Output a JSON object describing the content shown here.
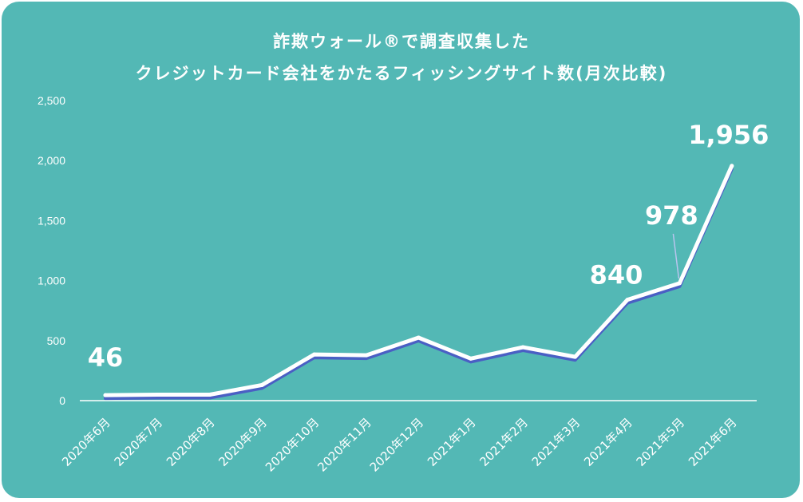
{
  "chart_data": {
    "type": "line",
    "title_line1": "詐欺ウォール®で調査収集した",
    "title_line2": "クレジットカード会社をかたるフィッシングサイト数(月次比較)",
    "categories": [
      "2020年6月",
      "2020年7月",
      "2020年8月",
      "2020年9月",
      "2020年10月",
      "2020年11月",
      "2020年12月",
      "2021年1月",
      "2021年2月",
      "2021年3月",
      "2021年4月",
      "2021年5月",
      "2021年6月"
    ],
    "values": [
      46,
      50,
      50,
      130,
      385,
      378,
      525,
      350,
      445,
      365,
      840,
      978,
      1956
    ],
    "ylim": [
      0,
      2500
    ],
    "yticks": [
      0,
      500,
      1000,
      1500,
      2000,
      2500
    ],
    "ytick_labels": [
      "0",
      "500",
      "1,000",
      "1,500",
      "2,000",
      "2,500"
    ],
    "data_labels": [
      {
        "index": 0,
        "text": "46"
      },
      {
        "index": 10,
        "text": "840"
      },
      {
        "index": 11,
        "text": "978"
      },
      {
        "index": 12,
        "text": "1,956"
      }
    ],
    "grid": false,
    "colors": {
      "background": "#53b8b5",
      "line": "#ffffff",
      "line_shadow": "#4a5fc4",
      "text": "#ffffff"
    }
  }
}
